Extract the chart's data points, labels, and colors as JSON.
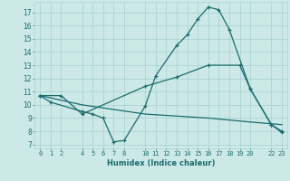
{
  "xlabel": "Humidex (Indice chaleur)",
  "bg_color": "#cce9e8",
  "grid_color": "#aad4d3",
  "line_color": "#1a6b6b",
  "xtick_positions": [
    0,
    1,
    2,
    4,
    5,
    6,
    7,
    8,
    10,
    11,
    12,
    13,
    14,
    15,
    16,
    17,
    18,
    19,
    20,
    22,
    23
  ],
  "ytick_positions": [
    7,
    8,
    9,
    10,
    11,
    12,
    13,
    14,
    15,
    16,
    17
  ],
  "xlim": [
    -0.5,
    23.5
  ],
  "ylim": [
    6.7,
    17.8
  ],
  "line1_x": [
    0,
    1,
    4,
    5,
    6,
    7,
    8,
    10,
    11,
    13,
    14,
    15,
    16,
    17,
    18,
    20,
    22,
    23
  ],
  "line1_y": [
    10.7,
    10.2,
    9.5,
    9.3,
    9.0,
    7.2,
    7.3,
    9.9,
    12.2,
    14.5,
    15.3,
    16.5,
    17.4,
    17.2,
    15.7,
    11.2,
    8.5,
    7.9
  ],
  "line2_x": [
    0,
    2,
    4,
    10,
    13,
    16,
    19,
    20,
    22,
    23
  ],
  "line2_y": [
    10.7,
    10.7,
    9.3,
    11.4,
    12.1,
    13.0,
    13.0,
    11.2,
    8.5,
    8.0
  ],
  "line3_x": [
    0,
    4,
    10,
    16,
    20,
    23
  ],
  "line3_y": [
    10.7,
    10.0,
    9.3,
    9.0,
    8.7,
    8.5
  ]
}
